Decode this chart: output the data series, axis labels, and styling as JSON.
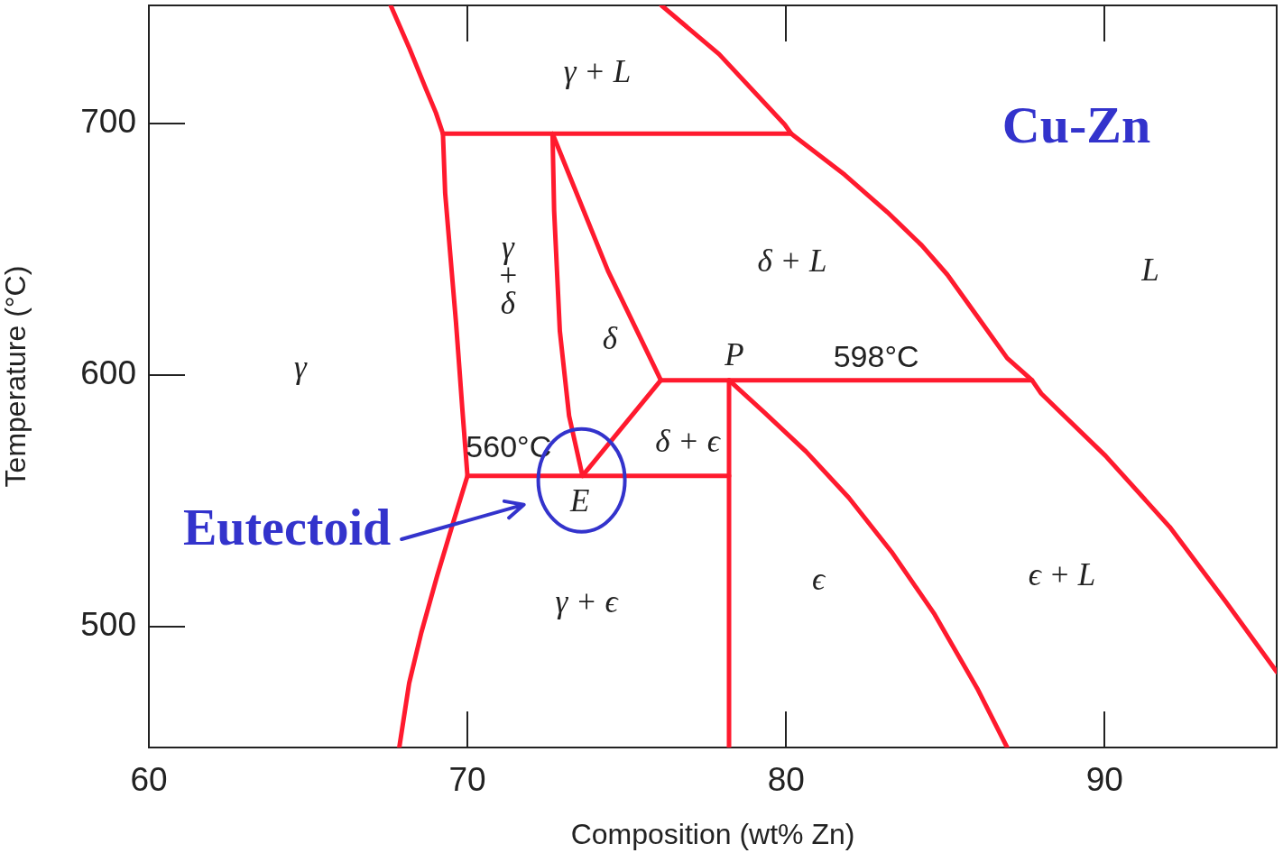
{
  "chart_data": {
    "type": "line",
    "title": "Cu-Zn",
    "xlabel": "Composition (wt% Zn)",
    "ylabel": "Temperature (°C)",
    "xlim": [
      60,
      95.4
    ],
    "xticks": [
      60,
      70,
      80,
      90
    ],
    "ylim": [
      452,
      747
    ],
    "yticks": [
      500,
      600,
      700
    ],
    "marker": "none",
    "line_style": "solid",
    "annotations": [
      "Eutectoid",
      {
        "text": "E",
        "x": 73.61,
        "y": 560
      },
      "γ + L",
      "γ\n+\nδ",
      "δ + L",
      "L",
      "δ",
      "γ",
      {
        "text": "P",
        "x": 78.21,
        "y": 598
      },
      {
        "text": "598°C",
        "x": 82.83,
        "y": 598
      },
      {
        "text": "560°C",
        "x": 71.69,
        "y": 560
      },
      "δ + ϵ",
      "γ + ϵ",
      "ϵ",
      "ϵ + L"
    ],
    "series": [
      {
        "color": "#ff1a2e",
        "x": [
          67.59,
          68.18,
          68.67,
          69.01,
          69.23,
          69.3,
          69.47,
          69.64,
          69.73,
          69.84,
          70.0,
          69.56,
          69.05,
          68.55,
          68.17,
          67.86
        ],
        "values": [
          747,
          729.9,
          714.6,
          704.3,
          696,
          672.4,
          646.6,
          621,
          605.6,
          586.4,
          560,
          541.8,
          520.3,
          497.6,
          477.6,
          452
        ]
      },
      {
        "color": "#ff1a2e",
        "x": [
          69.23,
          80.16
        ],
        "values": [
          696,
          696
        ]
      },
      {
        "color": "#ff1a2e",
        "x": [
          76.09,
          77.9,
          79.96,
          80.16,
          81.84,
          83.18,
          84.26,
          85.06,
          86.0,
          86.94,
          87.72,
          88.01,
          90.03,
          92.04,
          93.79,
          95.4
        ],
        "values": [
          747,
          727.6,
          699.6,
          696,
          679.7,
          664.8,
          651.6,
          640,
          623.4,
          606.8,
          598,
          592.7,
          567.9,
          539.7,
          510.2,
          482.1
        ]
      },
      {
        "color": "#ff1a2e",
        "x": [
          72.67,
          72.72,
          72.9,
          73.19,
          73.61
        ],
        "values": [
          696,
          665.5,
          617.5,
          583.8,
          560
        ]
      },
      {
        "color": "#ff1a2e",
        "x": [
          72.67,
          74.41,
          76.07
        ],
        "values": [
          696,
          641.5,
          598
        ]
      },
      {
        "color": "#ff1a2e",
        "x": [
          76.07,
          73.61
        ],
        "values": [
          598,
          560
        ]
      },
      {
        "color": "#ff1a2e",
        "x": [
          76.07,
          87.72
        ],
        "values": [
          598,
          598
        ]
      },
      {
        "color": "#ff1a2e",
        "x": [
          78.21,
          78.21
        ],
        "values": [
          598,
          452
        ]
      },
      {
        "color": "#ff1a2e",
        "x": [
          70.0,
          78.21
        ],
        "values": [
          560,
          560
        ]
      },
      {
        "color": "#ff1a2e",
        "x": [
          78.21,
          79.31,
          80.63,
          81.97,
          83.31,
          84.66,
          86.0,
          86.94
        ],
        "values": [
          598,
          585.3,
          569.6,
          551.3,
          529.8,
          505,
          475.5,
          452
        ]
      }
    ]
  }
}
